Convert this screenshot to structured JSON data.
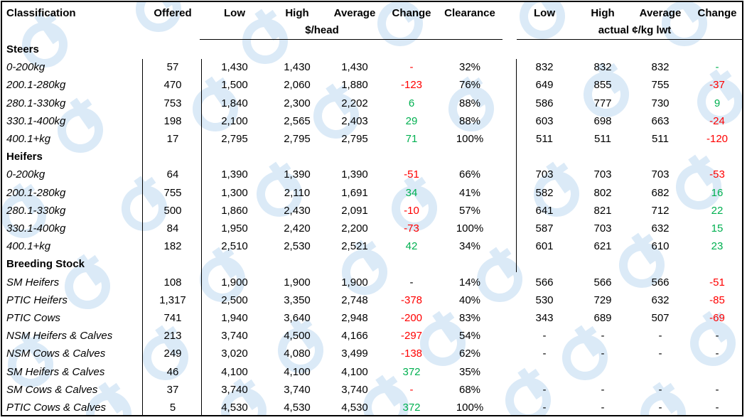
{
  "headers": {
    "classification": "Classification",
    "offered": "Offered",
    "low": "Low",
    "high": "High",
    "average": "Average",
    "change": "Change",
    "clearance": "Clearance",
    "low2": "Low",
    "high2": "High",
    "average2": "Average",
    "change2": "Change",
    "unit_head": "$/head",
    "unit_kg": "actual ¢/kg lwt"
  },
  "sections": [
    {
      "title": "Steers",
      "rows": [
        {
          "label": "0-200kg",
          "offered": "57",
          "low": "1,430",
          "high": "1,430",
          "avg": "1,430",
          "change": "-",
          "change_color": "red",
          "clearance": "32%",
          "kg_low": "832",
          "kg_high": "832",
          "kg_avg": "832",
          "kg_change": "-",
          "kg_change_color": "green"
        },
        {
          "label": "200.1-280kg",
          "offered": "470",
          "low": "1,500",
          "high": "2,060",
          "avg": "1,880",
          "change": "-123",
          "change_color": "red",
          "clearance": "76%",
          "kg_low": "649",
          "kg_high": "855",
          "kg_avg": "755",
          "kg_change": "-37",
          "kg_change_color": "red"
        },
        {
          "label": "280.1-330kg",
          "offered": "753",
          "low": "1,840",
          "high": "2,300",
          "avg": "2,202",
          "change": "6",
          "change_color": "green",
          "clearance": "88%",
          "kg_low": "586",
          "kg_high": "777",
          "kg_avg": "730",
          "kg_change": "9",
          "kg_change_color": "green"
        },
        {
          "label": "330.1-400kg",
          "offered": "198",
          "low": "2,100",
          "high": "2,565",
          "avg": "2,403",
          "change": "29",
          "change_color": "green",
          "clearance": "88%",
          "kg_low": "603",
          "kg_high": "698",
          "kg_avg": "663",
          "kg_change": "-24",
          "kg_change_color": "red"
        },
        {
          "label": "400.1+kg",
          "offered": "17",
          "low": "2,795",
          "high": "2,795",
          "avg": "2,795",
          "change": "71",
          "change_color": "green",
          "clearance": "100%",
          "kg_low": "511",
          "kg_high": "511",
          "kg_avg": "511",
          "kg_change": "-120",
          "kg_change_color": "red"
        }
      ]
    },
    {
      "title": "Heifers",
      "rows": [
        {
          "label": "0-200kg",
          "offered": "64",
          "low": "1,390",
          "high": "1,390",
          "avg": "1,390",
          "change": "-51",
          "change_color": "red",
          "clearance": "66%",
          "kg_low": "703",
          "kg_high": "703",
          "kg_avg": "703",
          "kg_change": "-53",
          "kg_change_color": "red"
        },
        {
          "label": "200.1-280kg",
          "offered": "755",
          "low": "1,300",
          "high": "2,110",
          "avg": "1,691",
          "change": "34",
          "change_color": "green",
          "clearance": "41%",
          "kg_low": "582",
          "kg_high": "802",
          "kg_avg": "682",
          "kg_change": "16",
          "kg_change_color": "green"
        },
        {
          "label": "280.1-330kg",
          "offered": "500",
          "low": "1,860",
          "high": "2,430",
          "avg": "2,091",
          "change": "-10",
          "change_color": "red",
          "clearance": "57%",
          "kg_low": "641",
          "kg_high": "821",
          "kg_avg": "712",
          "kg_change": "22",
          "kg_change_color": "green"
        },
        {
          "label": "330.1-400kg",
          "offered": "84",
          "low": "1,950",
          "high": "2,420",
          "avg": "2,200",
          "change": "-73",
          "change_color": "red",
          "clearance": "100%",
          "kg_low": "587",
          "kg_high": "703",
          "kg_avg": "632",
          "kg_change": "15",
          "kg_change_color": "green"
        },
        {
          "label": "400.1+kg",
          "offered": "182",
          "low": "2,510",
          "high": "2,530",
          "avg": "2,521",
          "change": "42",
          "change_color": "green",
          "clearance": "34%",
          "kg_low": "601",
          "kg_high": "621",
          "kg_avg": "610",
          "kg_change": "23",
          "kg_change_color": "green"
        }
      ]
    },
    {
      "title": "Breeding Stock",
      "rows": [
        {
          "label": "SM Heifers",
          "offered": "108",
          "low": "1,900",
          "high": "1,900",
          "avg": "1,900",
          "change": "-",
          "change_color": "black",
          "clearance": "14%",
          "kg_low": "566",
          "kg_high": "566",
          "kg_avg": "566",
          "kg_change": "-51",
          "kg_change_color": "red"
        },
        {
          "label": "PTIC Heifers",
          "offered": "1,317",
          "low": "2,500",
          "high": "3,350",
          "avg": "2,748",
          "change": "-378",
          "change_color": "red",
          "clearance": "40%",
          "kg_low": "530",
          "kg_high": "729",
          "kg_avg": "632",
          "kg_change": "-85",
          "kg_change_color": "red"
        },
        {
          "label": "PTIC Cows",
          "offered": "741",
          "low": "1,940",
          "high": "3,640",
          "avg": "2,948",
          "change": "-200",
          "change_color": "red",
          "clearance": "83%",
          "kg_low": "343",
          "kg_high": "689",
          "kg_avg": "507",
          "kg_change": "-69",
          "kg_change_color": "red"
        },
        {
          "label": "NSM Heifers & Calves",
          "offered": "213",
          "low": "3,740",
          "high": "4,500",
          "avg": "4,166",
          "change": "-297",
          "change_color": "red",
          "clearance": "54%",
          "kg_low": "-",
          "kg_high": "-",
          "kg_avg": "-",
          "kg_change": "-",
          "kg_change_color": "black"
        },
        {
          "label": "NSM Cows & Calves",
          "offered": "249",
          "low": "3,020",
          "high": "4,080",
          "avg": "3,499",
          "change": "-138",
          "change_color": "red",
          "clearance": "62%",
          "kg_low": "-",
          "kg_high": "-",
          "kg_avg": "-",
          "kg_change": "-",
          "kg_change_color": "black"
        },
        {
          "label": "SM Heifers & Calves",
          "offered": "46",
          "low": "4,100",
          "high": "4,100",
          "avg": "4,100",
          "change": "372",
          "change_color": "green",
          "clearance": "35%",
          "kg_low": "",
          "kg_high": "",
          "kg_avg": "",
          "kg_change": "",
          "kg_change_color": "black"
        },
        {
          "label": "SM Cows & Calves",
          "offered": "37",
          "low": "3,740",
          "high": "3,740",
          "avg": "3,740",
          "change": "-",
          "change_color": "red",
          "clearance": "68%",
          "kg_low": "-",
          "kg_high": "-",
          "kg_avg": "-",
          "kg_change": "-",
          "kg_change_color": "black"
        },
        {
          "label": "PTIC Cows & Calves",
          "offered": "5",
          "low": "4,530",
          "high": "4,530",
          "avg": "4,530",
          "change": "372",
          "change_color": "green",
          "clearance": "100%",
          "kg_low": "-",
          "kg_high": "-",
          "kg_avg": "-",
          "kg_change": "-",
          "kg_change_color": "black"
        }
      ]
    }
  ],
  "colors": {
    "red": "#ff0000",
    "green": "#00b050",
    "black": "#000000",
    "watermark": "#dbeaf7"
  }
}
